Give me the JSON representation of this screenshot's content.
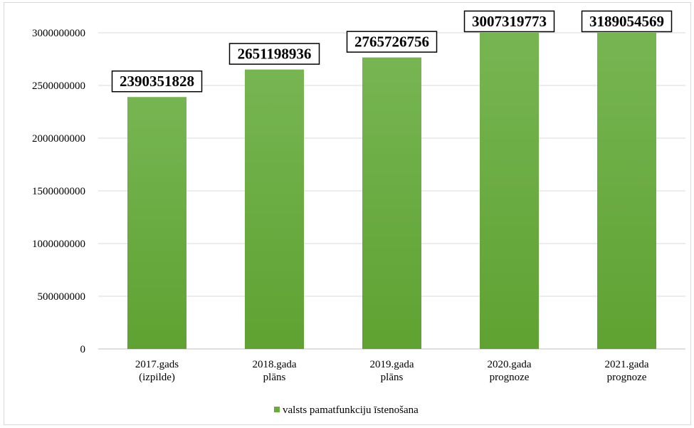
{
  "chart_data": {
    "type": "bar",
    "categories": [
      [
        "2017.gads",
        "(izpilde)"
      ],
      [
        "2018.gada",
        "plāns"
      ],
      [
        "2019.gada",
        "plāns"
      ],
      [
        "2020.gada",
        "prognoze"
      ],
      [
        "2021.gada",
        "prognoze"
      ]
    ],
    "series": [
      {
        "name": "valsts pamatfunkciju īstenošana",
        "values": [
          2390351828,
          2651198936,
          2765726756,
          3007319773,
          3189054569
        ],
        "color": "#6aaa40"
      }
    ],
    "data_labels": [
      "2390351828",
      "2651198936",
      "2765726756",
      "3007319773",
      "3189054569"
    ],
    "yticks": [
      "0",
      "500000000",
      "1000000000",
      "1500000000",
      "2000000000",
      "2500000000",
      "3000000000"
    ],
    "ylim": [
      0,
      3000000000
    ],
    "grid": true,
    "legend_position": "bottom",
    "title": "",
    "xlabel": "",
    "ylabel": ""
  }
}
